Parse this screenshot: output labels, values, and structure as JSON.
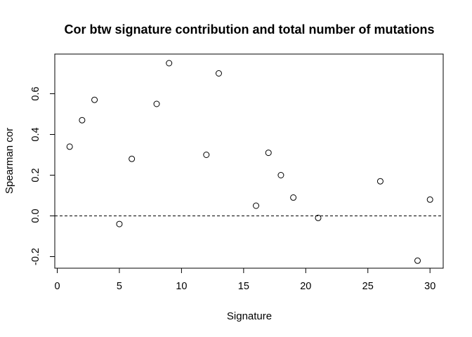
{
  "chart_data": {
    "type": "scatter",
    "title": "Cor btw signature contribution and total number of mutations",
    "xlabel": "Signature",
    "ylabel": "Spearman cor",
    "xlim": [
      0,
      31
    ],
    "ylim": [
      -0.24,
      0.77
    ],
    "xticks": [
      0,
      5,
      10,
      15,
      20,
      25,
      30
    ],
    "yticks": [
      -0.2,
      0.0,
      0.2,
      0.4,
      0.6
    ],
    "ytick_labels": [
      "-0.2",
      "0.0",
      "0.2",
      "0.4",
      "0.6"
    ],
    "reference_line": {
      "y": 0,
      "style": "dashed"
    },
    "grid": false,
    "marker": "open-circle",
    "points": [
      {
        "x": 1,
        "y": 0.34
      },
      {
        "x": 2,
        "y": 0.47
      },
      {
        "x": 3,
        "y": 0.57
      },
      {
        "x": 5,
        "y": -0.04
      },
      {
        "x": 6,
        "y": 0.28
      },
      {
        "x": 8,
        "y": 0.55
      },
      {
        "x": 9,
        "y": 0.75
      },
      {
        "x": 12,
        "y": 0.3
      },
      {
        "x": 13,
        "y": 0.7
      },
      {
        "x": 16,
        "y": 0.05
      },
      {
        "x": 17,
        "y": 0.31
      },
      {
        "x": 18,
        "y": 0.2
      },
      {
        "x": 19,
        "y": 0.09
      },
      {
        "x": 21,
        "y": -0.01
      },
      {
        "x": 26,
        "y": 0.17
      },
      {
        "x": 29,
        "y": -0.22
      },
      {
        "x": 30,
        "y": 0.08
      }
    ]
  }
}
